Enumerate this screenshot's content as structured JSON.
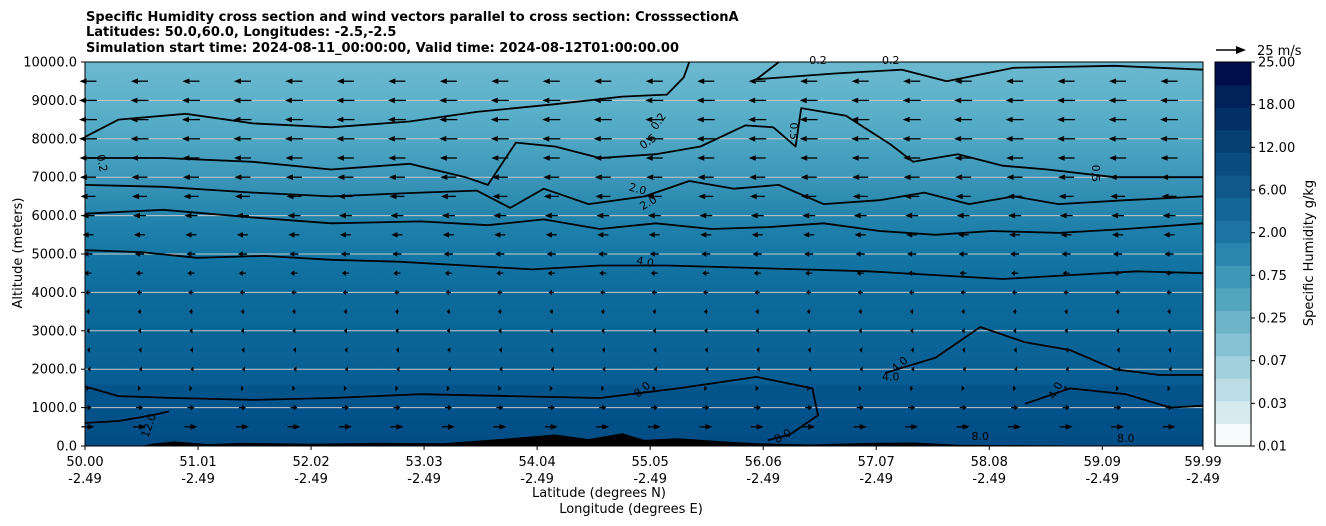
{
  "title_lines": [
    "Specific Humidity cross section and wind vectors parallel to cross section: CrosssectionA",
    "Latitudes: 50.0,60.0, Longitudes: -2.5,-2.5",
    "Simulation start time: 2024-08-11_00:00:00, Valid time: 2024-08-12T01:00:00.00"
  ],
  "chart_data": {
    "type": "heatmap",
    "xlabel_lines": [
      "Latitude (degrees N)",
      "Longitude (degrees E)"
    ],
    "ylabel": "Altitude (meters)",
    "ylim": [
      0,
      10000
    ],
    "xlim": [
      50.0,
      59.99
    ],
    "y_ticks": [
      "0.0",
      "1000.0",
      "2000.0",
      "3000.0",
      "4000.0",
      "5000.0",
      "6000.0",
      "7000.0",
      "8000.0",
      "9000.0",
      "10000.0"
    ],
    "y_tick_values": [
      0,
      1000,
      2000,
      3000,
      4000,
      5000,
      6000,
      7000,
      8000,
      9000,
      10000
    ],
    "x_ticks": [
      {
        "value": 50.0,
        "lat": "50.00",
        "lon": "-2.49"
      },
      {
        "value": 51.01,
        "lat": "51.01",
        "lon": "-2.49"
      },
      {
        "value": 52.02,
        "lat": "52.02",
        "lon": "-2.49"
      },
      {
        "value": 53.03,
        "lat": "53.03",
        "lon": "-2.49"
      },
      {
        "value": 54.04,
        "lat": "54.04",
        "lon": "-2.49"
      },
      {
        "value": 55.05,
        "lat": "55.05",
        "lon": "-2.49"
      },
      {
        "value": 56.06,
        "lat": "56.06",
        "lon": "-2.49"
      },
      {
        "value": 57.07,
        "lat": "57.07",
        "lon": "-2.49"
      },
      {
        "value": 58.08,
        "lat": "58.08",
        "lon": "-2.49"
      },
      {
        "value": 59.09,
        "lat": "59.09",
        "lon": "-2.49"
      },
      {
        "value": 59.99,
        "lat": "59.99",
        "lon": "-2.49"
      }
    ],
    "grid": "horizontal",
    "colorbar": {
      "label": "Specific Humidity g/kg",
      "tick_labels": [
        "0.01",
        "0.03",
        "0.07",
        "0.25",
        "0.75",
        "2.00",
        "6.00",
        "12.00",
        "18.00",
        "25.00"
      ],
      "colors": [
        "#f7fbfc",
        "#d6ebf0",
        "#bcdee7",
        "#a2d1de",
        "#86c2d3",
        "#6db4c9",
        "#54a6bf",
        "#3f97b7",
        "#2b86ad",
        "#1b74a2",
        "#136696",
        "#0e598a",
        "#0a4c7e",
        "#063f72",
        "#033066",
        "#01215a",
        "#000f4c"
      ]
    },
    "quiver_key": {
      "label": "25 m/s",
      "speed": 25
    },
    "contour_levels": [
      "0.2",
      "0.5",
      "2.0",
      "4.0",
      "8.0",
      "12.0"
    ],
    "contour_labels": [
      {
        "text": "0.2",
        "lat": 50.12,
        "alt": 7350,
        "angle": 80
      },
      {
        "text": "0.2",
        "lat": 55.15,
        "alt": 8400,
        "angle": -55
      },
      {
        "text": "0.5",
        "lat": 55.05,
        "alt": 7850,
        "angle": -35
      },
      {
        "text": "0.5",
        "lat": 56.3,
        "alt": 8200,
        "angle": 90
      },
      {
        "text": "0.5",
        "lat": 59.0,
        "alt": 7100,
        "angle": 90
      },
      {
        "text": "0.2",
        "lat": 56.55,
        "alt": 9950,
        "angle": 0
      },
      {
        "text": "0.2",
        "lat": 57.2,
        "alt": 9950,
        "angle": 0
      },
      {
        "text": "2.0",
        "lat": 54.93,
        "alt": 6600,
        "angle": 15
      },
      {
        "text": "2.0",
        "lat": 55.05,
        "alt": 6250,
        "angle": -30
      },
      {
        "text": "4.0",
        "lat": 55.0,
        "alt": 4700,
        "angle": 10
      },
      {
        "text": "4.0",
        "lat": 57.3,
        "alt": 2050,
        "angle": -40
      },
      {
        "text": "4.0",
        "lat": 57.2,
        "alt": 1700,
        "angle": 0
      },
      {
        "text": "4.0",
        "lat": 58.7,
        "alt": 1400,
        "angle": -60
      },
      {
        "text": "8.0",
        "lat": 55.0,
        "alt": 1400,
        "angle": -40
      },
      {
        "text": "8.0",
        "lat": 56.25,
        "alt": 180,
        "angle": -30
      },
      {
        "text": "8.0",
        "lat": 58.0,
        "alt": 150,
        "angle": 0
      },
      {
        "text": "8.0",
        "lat": 59.3,
        "alt": 100,
        "angle": 0
      },
      {
        "text": "12.0",
        "lat": 50.6,
        "alt": 500,
        "angle": -70
      }
    ],
    "contours": [
      {
        "level": "0.2",
        "points": [
          [
            50.0,
            8050
          ],
          [
            50.3,
            8500
          ],
          [
            50.9,
            8650
          ],
          [
            51.5,
            8400
          ],
          [
            52.2,
            8300
          ],
          [
            52.9,
            8450
          ],
          [
            53.5,
            8700
          ],
          [
            54.2,
            8900
          ],
          [
            54.8,
            9100
          ],
          [
            55.2,
            9150
          ],
          [
            55.35,
            9600
          ],
          [
            55.4,
            10000
          ]
        ]
      },
      {
        "level": "0.2",
        "points": [
          [
            56.2,
            10000
          ],
          [
            56.0,
            9550
          ],
          [
            56.7,
            9700
          ],
          [
            57.3,
            9800
          ],
          [
            57.7,
            9500
          ],
          [
            58.3,
            9850
          ],
          [
            59.2,
            9900
          ],
          [
            59.99,
            9800
          ]
        ]
      },
      {
        "level": "0.5",
        "points": [
          [
            50.0,
            7500
          ],
          [
            50.7,
            7500
          ],
          [
            51.5,
            7400
          ],
          [
            52.2,
            7200
          ],
          [
            52.9,
            7350
          ],
          [
            53.4,
            7000
          ],
          [
            53.6,
            6800
          ],
          [
            53.85,
            7900
          ],
          [
            54.2,
            7800
          ],
          [
            54.6,
            7500
          ],
          [
            55.1,
            7600
          ],
          [
            55.5,
            7800
          ],
          [
            55.9,
            8350
          ],
          [
            56.15,
            8300
          ],
          [
            56.35,
            7800
          ],
          [
            56.4,
            8800
          ],
          [
            56.8,
            8600
          ],
          [
            57.2,
            7850
          ],
          [
            57.4,
            7400
          ],
          [
            57.8,
            7600
          ],
          [
            58.2,
            7300
          ],
          [
            58.6,
            7200
          ],
          [
            59.2,
            7000
          ],
          [
            59.99,
            7000
          ]
        ]
      },
      {
        "level": "2.0",
        "points": [
          [
            50.0,
            6800
          ],
          [
            50.7,
            6750
          ],
          [
            51.5,
            6600
          ],
          [
            52.2,
            6500
          ],
          [
            53.0,
            6600
          ],
          [
            53.5,
            6650
          ],
          [
            53.8,
            6200
          ],
          [
            54.1,
            6700
          ],
          [
            54.5,
            6300
          ],
          [
            55.0,
            6500
          ],
          [
            55.4,
            6900
          ],
          [
            55.8,
            6700
          ],
          [
            56.2,
            6800
          ],
          [
            56.6,
            6300
          ],
          [
            57.1,
            6400
          ],
          [
            57.5,
            6600
          ],
          [
            57.9,
            6300
          ],
          [
            58.3,
            6500
          ],
          [
            58.7,
            6300
          ],
          [
            59.3,
            6400
          ],
          [
            59.99,
            6500
          ]
        ]
      },
      {
        "level": "2.0",
        "points": [
          [
            50.0,
            6050
          ],
          [
            50.7,
            6150
          ],
          [
            51.5,
            5950
          ],
          [
            52.2,
            5800
          ],
          [
            53.0,
            5850
          ],
          [
            53.6,
            5750
          ],
          [
            54.1,
            5900
          ],
          [
            54.6,
            5650
          ],
          [
            55.1,
            5800
          ],
          [
            55.6,
            5650
          ],
          [
            56.1,
            5700
          ],
          [
            56.6,
            5800
          ],
          [
            57.1,
            5600
          ],
          [
            57.6,
            5500
          ],
          [
            58.1,
            5600
          ],
          [
            58.7,
            5550
          ],
          [
            59.3,
            5650
          ],
          [
            59.99,
            5800
          ]
        ]
      },
      {
        "level": "4.0",
        "points": [
          [
            50.0,
            5100
          ],
          [
            50.5,
            5050
          ],
          [
            51.0,
            4900
          ],
          [
            51.6,
            4950
          ],
          [
            52.2,
            4850
          ],
          [
            52.8,
            4800
          ],
          [
            53.4,
            4700
          ],
          [
            54.0,
            4600
          ],
          [
            54.6,
            4700
          ],
          [
            55.2,
            4700
          ],
          [
            55.8,
            4650
          ],
          [
            56.4,
            4600
          ],
          [
            57.0,
            4550
          ],
          [
            57.6,
            4450
          ],
          [
            58.2,
            4350
          ],
          [
            58.8,
            4450
          ],
          [
            59.4,
            4550
          ],
          [
            59.99,
            4500
          ]
        ]
      },
      {
        "level": "4.0",
        "points": [
          [
            57.15,
            1900
          ],
          [
            57.6,
            2300
          ],
          [
            58.0,
            3100
          ],
          [
            58.4,
            2700
          ],
          [
            58.8,
            2500
          ],
          [
            59.2,
            2000
          ],
          [
            59.6,
            1850
          ],
          [
            59.99,
            1850
          ]
        ]
      },
      {
        "level": "4.0",
        "points": [
          [
            58.4,
            1100
          ],
          [
            58.8,
            1500
          ],
          [
            59.3,
            1350
          ],
          [
            59.7,
            1000
          ],
          [
            59.99,
            1050
          ]
        ]
      },
      {
        "level": "8.0",
        "points": [
          [
            50.0,
            1550
          ],
          [
            50.3,
            1300
          ],
          [
            50.8,
            1250
          ],
          [
            51.5,
            1200
          ],
          [
            52.2,
            1250
          ],
          [
            53.0,
            1350
          ],
          [
            53.8,
            1300
          ],
          [
            54.6,
            1250
          ],
          [
            55.3,
            1500
          ],
          [
            56.0,
            1800
          ],
          [
            56.5,
            1500
          ],
          [
            56.55,
            800
          ],
          [
            56.3,
            300
          ],
          [
            56.1,
            150
          ]
        ]
      },
      {
        "level": "12.0",
        "points": [
          [
            50.0,
            600
          ],
          [
            50.3,
            650
          ],
          [
            50.6,
            800
          ],
          [
            50.75,
            900
          ]
        ]
      }
    ],
    "terrain": [
      [
        50.0,
        0
      ],
      [
        50.5,
        0
      ],
      [
        50.6,
        60
      ],
      [
        50.8,
        120
      ],
      [
        51.1,
        50
      ],
      [
        51.4,
        80
      ],
      [
        52.0,
        60
      ],
      [
        52.6,
        80
      ],
      [
        53.2,
        70
      ],
      [
        53.8,
        200
      ],
      [
        54.2,
        300
      ],
      [
        54.5,
        180
      ],
      [
        54.8,
        330
      ],
      [
        55.0,
        160
      ],
      [
        55.3,
        200
      ],
      [
        55.7,
        120
      ],
      [
        56.0,
        70
      ],
      [
        56.5,
        40
      ],
      [
        57.0,
        80
      ],
      [
        57.4,
        90
      ],
      [
        57.8,
        30
      ],
      [
        58.5,
        20
      ],
      [
        59.0,
        10
      ],
      [
        59.99,
        0
      ]
    ],
    "wind": {
      "lats": [
        50.0,
        50.46,
        50.92,
        51.38,
        51.84,
        52.3,
        52.76,
        53.22,
        53.68,
        54.14,
        54.6,
        55.06,
        55.52,
        55.98,
        56.44,
        56.9,
        57.36,
        57.82,
        58.28,
        58.74,
        59.2,
        59.66
      ],
      "alts": [
        500,
        1000,
        1500,
        2000,
        2500,
        3000,
        3500,
        4000,
        4500,
        5000,
        5500,
        6000,
        6500,
        7000,
        7500,
        8000,
        8500,
        9000,
        9500
      ],
      "u_by_level_ms": [
        6.5,
        3.5,
        1.5,
        -0.5,
        -1.0,
        -1.5,
        -1.8,
        -2.5,
        -3.5,
        -4.5,
        -5.5,
        -6.5,
        -7.5,
        -8.0,
        -8.5,
        -9.0,
        -9.0,
        -9.0,
        -8.5
      ]
    }
  }
}
